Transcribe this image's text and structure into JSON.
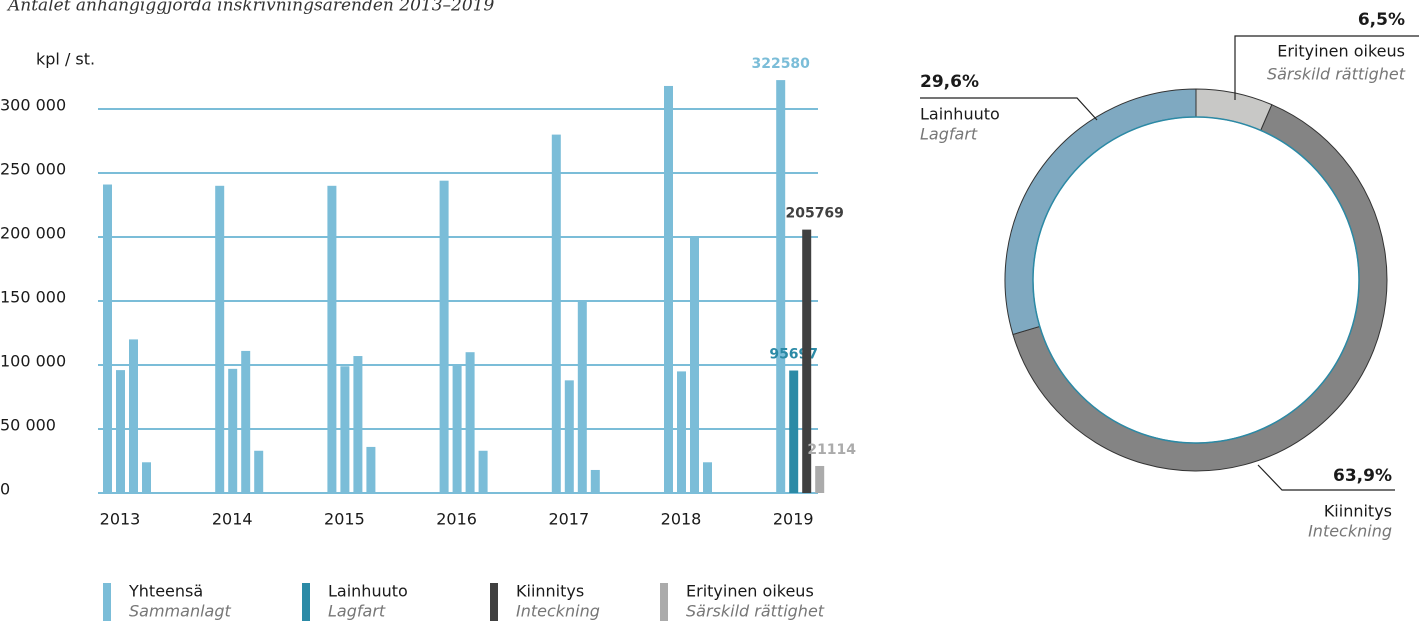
{
  "chart_data": [
    {
      "type": "bar",
      "title": "Antalet anhängiggjorda inskrivningsärenden 2013–2019",
      "y_label": "kpl / st.",
      "categories": [
        "2013",
        "2014",
        "2015",
        "2016",
        "2017",
        "2018",
        "2019"
      ],
      "series": [
        {
          "name": "Yhteensä",
          "subname": "Sammanlagt",
          "color": "#7bbdd8",
          "colors": [
            "#7bbdd8",
            "#7bbdd8",
            "#7bbdd8",
            "#7bbdd8",
            "#7bbdd8",
            "#7bbdd8",
            "#7bbdd8"
          ],
          "values": [
            241000,
            240000,
            240000,
            244000,
            280000,
            318000,
            322580
          ]
        },
        {
          "name": "Lainhuuto",
          "subname": "Lagfart",
          "color": "#2b8aa6",
          "colors": [
            "#7bbdd8",
            "#7bbdd8",
            "#7bbdd8",
            "#7bbdd8",
            "#7bbdd8",
            "#7bbdd8",
            "#2b8aa6"
          ],
          "values": [
            96000,
            97000,
            99000,
            100000,
            88000,
            95000,
            95697
          ]
        },
        {
          "name": "Kiinnitys",
          "subname": "Inteckning",
          "color": "#404040",
          "colors": [
            "#7bbdd8",
            "#7bbdd8",
            "#7bbdd8",
            "#7bbdd8",
            "#7bbdd8",
            "#7bbdd8",
            "#404040"
          ],
          "values": [
            120000,
            111000,
            107000,
            110000,
            150000,
            200000,
            205769
          ]
        },
        {
          "name": "Erityinen oikeus",
          "subname": "Särskild rättighet",
          "color": "#ababab",
          "colors": [
            "#7bbdd8",
            "#7bbdd8",
            "#7bbdd8",
            "#7bbdd8",
            "#7bbdd8",
            "#7bbdd8",
            "#ababab"
          ],
          "values": [
            24000,
            33000,
            36000,
            33000,
            18000,
            24000,
            21114
          ]
        }
      ],
      "ylim": [
        0,
        320000
      ],
      "yticks": [
        0,
        {
          "value": 50000,
          "label": "50 000"
        },
        {
          "value": 100000,
          "label": "100 000"
        },
        {
          "value": 150000,
          "label": "150 000"
        },
        {
          "value": 200000,
          "label": "200 000"
        },
        {
          "value": 250000,
          "label": "250 000"
        },
        {
          "value": 300000,
          "label": "300 000"
        }
      ],
      "grid": true
    },
    {
      "type": "pie",
      "categories": [
        "Erityinen oikeus",
        "Kiinnitys",
        "Lainhuuto"
      ],
      "subnames": [
        "Särskild rättighet",
        "Inteckning",
        "Lagfart"
      ],
      "values": [
        6.5,
        63.9,
        29.6
      ],
      "value_labels": [
        "6,5%",
        "63,9%",
        "29,6%"
      ],
      "colors": [
        "#c8c8c6",
        "#848484",
        "#7fa9c1"
      ]
    }
  ]
}
